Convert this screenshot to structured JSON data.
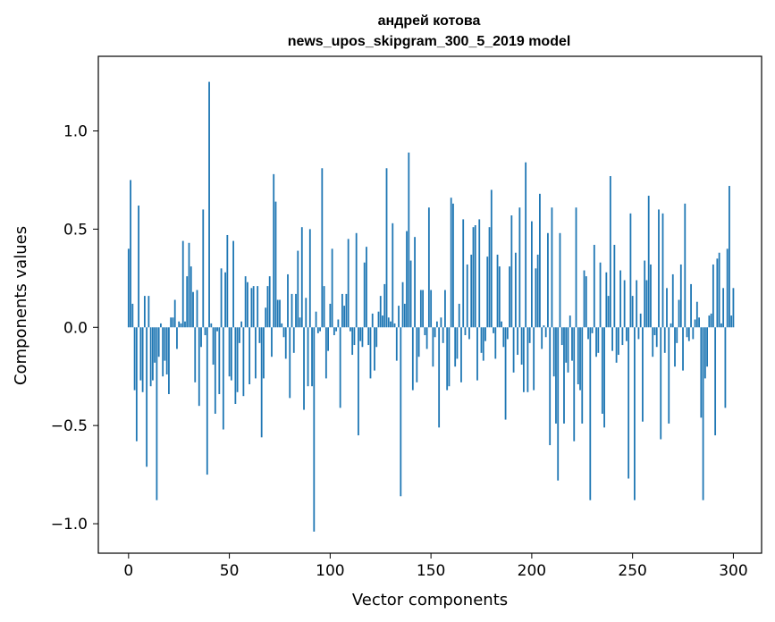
{
  "chart_data": {
    "type": "bar",
    "title": "андрей котова",
    "subtitle": "news_upos_skipgram_300_5_2019 model",
    "xlabel": "Vector components",
    "ylabel": "Components values",
    "xlim": [
      -15,
      314
    ],
    "ylim": [
      -1.15,
      1.38
    ],
    "xticks": [
      0,
      50,
      100,
      150,
      200,
      250,
      300
    ],
    "xtick_labels": [
      "0",
      "50",
      "100",
      "150",
      "200",
      "250",
      "300"
    ],
    "yticks": [
      -1.0,
      -0.5,
      0.0,
      0.5,
      1.0
    ],
    "ytick_labels": [
      "−1.0",
      "−0.5",
      "0.0",
      "0.5",
      "1.0"
    ],
    "bar_color": "#1f77b4",
    "values": [
      0.4,
      0.75,
      0.12,
      -0.32,
      -0.58,
      0.62,
      -0.27,
      -0.33,
      0.16,
      -0.71,
      0.16,
      -0.3,
      -0.27,
      -0.18,
      -0.88,
      -0.15,
      0.02,
      -0.25,
      -0.17,
      -0.24,
      -0.34,
      0.05,
      0.05,
      0.14,
      -0.11,
      0.03,
      0.02,
      0.44,
      0.03,
      0.26,
      0.43,
      0.31,
      0.18,
      -0.28,
      0.19,
      -0.4,
      -0.1,
      0.6,
      -0.04,
      -0.75,
      1.25,
      0.02,
      -0.19,
      -0.44,
      -0.02,
      -0.34,
      0.3,
      -0.52,
      0.28,
      0.47,
      -0.25,
      -0.27,
      0.44,
      -0.39,
      -0.33,
      -0.08,
      0.03,
      -0.35,
      0.26,
      0.23,
      -0.29,
      0.2,
      0.21,
      -0.26,
      0.21,
      -0.08,
      -0.56,
      -0.26,
      0.1,
      0.21,
      0.26,
      -0.15,
      0.78,
      0.64,
      0.14,
      0.14,
      0.02,
      -0.05,
      -0.16,
      0.27,
      -0.36,
      0.17,
      -0.13,
      0.17,
      0.39,
      0.05,
      0.51,
      -0.42,
      0.15,
      -0.3,
      0.5,
      -0.3,
      -1.04,
      0.08,
      -0.03,
      -0.02,
      0.81,
      0.21,
      -0.26,
      -0.12,
      0.12,
      0.4,
      -0.04,
      -0.02,
      0.04,
      -0.41,
      0.17,
      0.11,
      0.17,
      0.45,
      -0.02,
      -0.14,
      -0.09,
      0.48,
      -0.55,
      -0.07,
      -0.1,
      0.33,
      0.41,
      -0.09,
      -0.26,
      0.07,
      -0.22,
      -0.1,
      0.08,
      0.16,
      0.06,
      0.22,
      0.81,
      0.05,
      0.03,
      0.53,
      0.02,
      -0.17,
      0.11,
      -0.86,
      0.23,
      0.12,
      0.49,
      0.89,
      0.34,
      -0.32,
      0.46,
      -0.28,
      -0.15,
      0.19,
      0.19,
      -0.04,
      -0.11,
      0.61,
      0.19,
      -0.2,
      -0.05,
      0.03,
      -0.51,
      0.05,
      -0.08,
      0.19,
      -0.32,
      -0.3,
      0.66,
      0.63,
      -0.2,
      -0.16,
      0.12,
      -0.28,
      0.55,
      -0.04,
      0.32,
      -0.06,
      0.37,
      0.51,
      0.52,
      -0.27,
      0.55,
      -0.13,
      -0.17,
      -0.07,
      0.36,
      0.51,
      0.7,
      -0.03,
      -0.16,
      0.37,
      0.31,
      0.03,
      -0.1,
      -0.47,
      -0.06,
      0.31,
      0.57,
      -0.23,
      0.38,
      -0.14,
      0.61,
      -0.19,
      -0.33,
      0.84,
      -0.33,
      -0.08,
      0.54,
      -0.32,
      0.3,
      0.37,
      0.68,
      -0.11,
      0.01,
      -0.05,
      0.48,
      -0.6,
      0.61,
      -0.25,
      -0.49,
      -0.78,
      0.48,
      -0.09,
      -0.49,
      -0.18,
      -0.23,
      0.06,
      -0.17,
      -0.58,
      0.61,
      -0.29,
      -0.32,
      -0.49,
      0.29,
      0.26,
      -0.06,
      -0.88,
      -0.03,
      0.42,
      -0.15,
      -0.13,
      0.33,
      -0.44,
      -0.51,
      0.28,
      0.16,
      0.77,
      -0.12,
      0.42,
      -0.18,
      -0.14,
      0.29,
      -0.09,
      0.24,
      -0.07,
      -0.77,
      0.58,
      0.16,
      -0.88,
      0.24,
      -0.06,
      0.07,
      -0.48,
      0.34,
      0.24,
      0.67,
      0.32,
      -0.15,
      -0.04,
      -0.1,
      0.6,
      -0.57,
      0.58,
      -0.13,
      0.2,
      -0.49,
      0.02,
      0.27,
      -0.2,
      -0.08,
      0.14,
      0.32,
      -0.22,
      0.63,
      -0.05,
      -0.07,
      0.22,
      -0.06,
      0.04,
      0.13,
      0.05,
      -0.46,
      -0.88,
      -0.26,
      -0.2,
      0.06,
      0.07,
      0.32,
      -0.55,
      0.35,
      0.38,
      0.02,
      0.2,
      -0.41,
      0.4,
      0.72,
      0.06,
      0.2
    ]
  }
}
